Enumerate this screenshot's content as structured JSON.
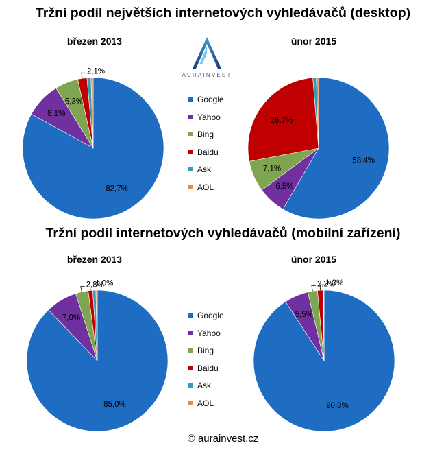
{
  "colors": {
    "Google": "#1f6dc2",
    "Yahoo": "#7030a0",
    "Bing": "#7fa550",
    "Baidu": "#c00000",
    "Ask": "#3a9ab4",
    "AOL": "#e6894c"
  },
  "desktop": {
    "title": "Tržní podíl největších internetových vyhledávačů (desktop)"
  },
  "mobile": {
    "title": "Tržní podíl internetových vyhledávačů (mobilní zařízení)"
  },
  "legend": [
    "Google",
    "Yahoo",
    "Bing",
    "Baidu",
    "Ask",
    "AOL"
  ],
  "logo": {
    "text": "AURAINVEST"
  },
  "footer": "© aurainvest.cz",
  "chart_data": [
    {
      "type": "pie",
      "group": "desktop",
      "title": "březen 2013",
      "labels": [
        "Google",
        "Yahoo",
        "Bing",
        "Baidu",
        "Ask",
        "AOL"
      ],
      "values": [
        82.7,
        8.1,
        5.3,
        2.1,
        0.9,
        0.5
      ],
      "data_labels": [
        "82,7%",
        "8,1%",
        "5,3%",
        "2,1%",
        "",
        ""
      ]
    },
    {
      "type": "pie",
      "group": "desktop",
      "title": "únor 2015",
      "labels": [
        "Google",
        "Yahoo",
        "Bing",
        "Baidu",
        "Ask",
        "AOL"
      ],
      "values": [
        58.4,
        6.5,
        7.1,
        26.7,
        0.8,
        0.5
      ],
      "data_labels": [
        "58,4%",
        "6,5%",
        "7,1%",
        "26,7%",
        "",
        ""
      ]
    },
    {
      "type": "pie",
      "group": "mobile",
      "title": "březen 2013",
      "labels": [
        "Google",
        "Yahoo",
        "Bing",
        "Baidu",
        "Ask",
        "AOL"
      ],
      "values": [
        85.0,
        7.0,
        2.8,
        1.0,
        0.7,
        0.3
      ],
      "data_labels": [
        "85,0%",
        "7,0%",
        "2,8%",
        "1,0%",
        "",
        ""
      ]
    },
    {
      "type": "pie",
      "group": "mobile",
      "title": "únor 2015",
      "labels": [
        "Google",
        "Yahoo",
        "Bing",
        "Baidu",
        "Ask",
        "AOL"
      ],
      "values": [
        90.8,
        5.5,
        2.2,
        1.3,
        0.1,
        0.1
      ],
      "data_labels": [
        "90,8%",
        "5,5%",
        "2,2%",
        "1,3%",
        "",
        ""
      ]
    }
  ]
}
